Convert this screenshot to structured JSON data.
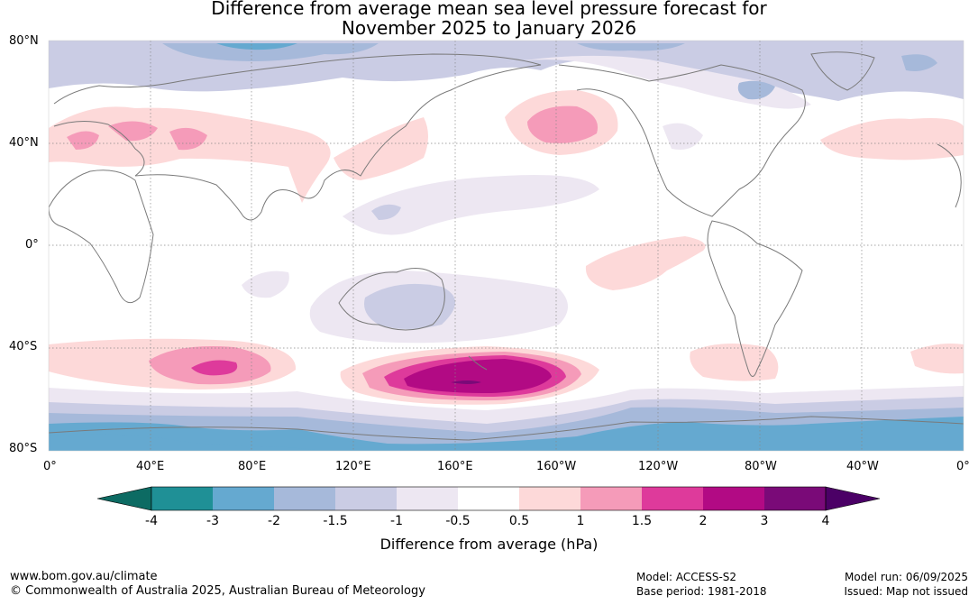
{
  "title": {
    "line1": "Difference from average mean sea level pressure forecast for",
    "line2": "November 2025 to January 2026"
  },
  "map": {
    "lat_labels": [
      "80°N",
      "40°N",
      "0°",
      "40°S",
      "80°S"
    ],
    "lon_labels": [
      "0°",
      "40°E",
      "80°E",
      "120°E",
      "160°E",
      "160°W",
      "120°W",
      "80°W",
      "40°W",
      "0°"
    ],
    "colors": {
      "ocean_land_bg": "#ffffff",
      "coastline": "#7a7a7a",
      "gridline": "#888888"
    }
  },
  "legend": {
    "title": "Difference from average (hPa)",
    "ticks": [
      "-4",
      "-3",
      "-2",
      "-1.5",
      "-1",
      "-0.5",
      "0.5",
      "1",
      "1.5",
      "2",
      "3",
      "4"
    ],
    "colors": [
      "#0d6b63",
      "#1f9096",
      "#65a9d0",
      "#a6b9da",
      "#cacce4",
      "#ede7f2",
      "#ffffff",
      "#fdd9d9",
      "#f59bb9",
      "#de3a9b",
      "#b20a84",
      "#7a0a78",
      "#4b0066"
    ]
  },
  "footer": {
    "site": "www.bom.gov.au/climate",
    "copyright": "© Commonwealth of Australia 2025, Australian Bureau of Meteorology",
    "model": "Model: ACCESS-S2",
    "base_period": "Base period: 1981-2018",
    "model_run": "Model run: 06/09/2025",
    "issued": "Issued: Map not issued"
  }
}
